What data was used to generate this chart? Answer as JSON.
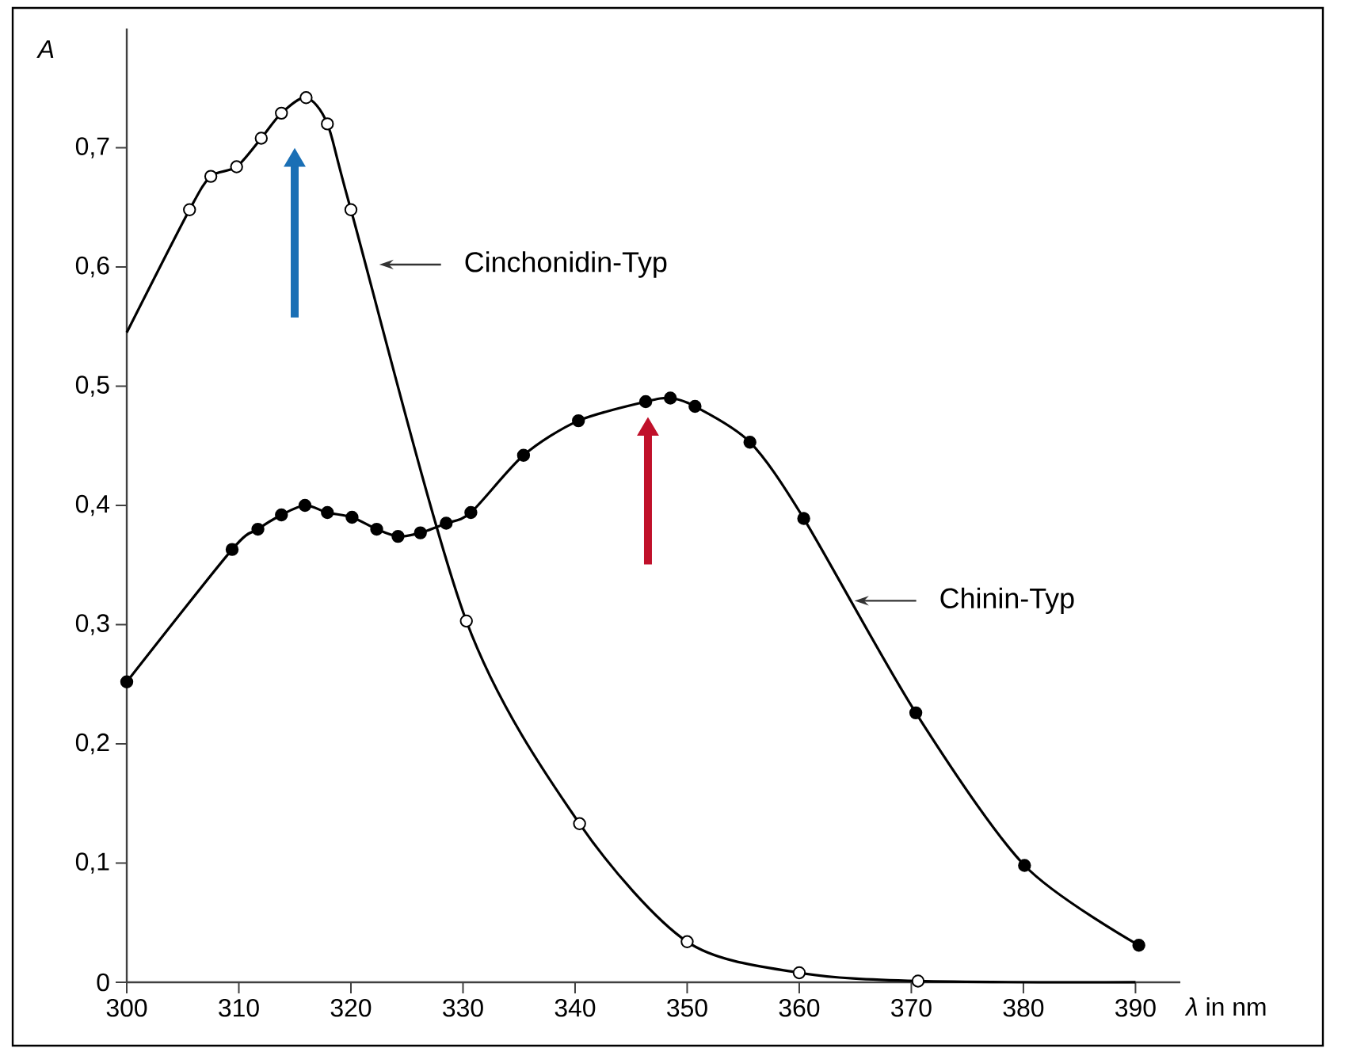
{
  "chart_data": {
    "type": "line",
    "xlabel": "*λ* in nm",
    "ylabel": "*A*",
    "xlim": [
      300,
      394
    ],
    "ylim": [
      0,
      0.8
    ],
    "xticks": [
      300,
      310,
      320,
      330,
      340,
      350,
      360,
      370,
      380,
      390
    ],
    "yticks": [
      0,
      {
        "value": 0.1,
        "label": "0,1"
      },
      {
        "value": 0.2,
        "label": "0,2"
      },
      {
        "value": 0.3,
        "label": "0,3"
      },
      {
        "value": 0.4,
        "label": "0,4"
      },
      {
        "value": 0.5,
        "label": "0,5"
      },
      {
        "value": 0.6,
        "label": "0,6"
      },
      {
        "value": 0.7,
        "label": "0,7"
      }
    ],
    "grid": false,
    "series": [
      {
        "marker": "none",
        "color": "#000000",
        "x": [
          300,
          305.6,
          307.5,
          309.8,
          312,
          313.8,
          316,
          317.9,
          320,
          330.3,
          340.4,
          350,
          360,
          370.6,
          390
        ],
        "values": [
          0.545,
          0.648,
          0.676,
          0.684,
          0.708,
          0.729,
          0.742,
          0.72,
          0.648,
          0.303,
          0.133,
          0.034,
          0.008,
          0.001,
          0
        ]
      },
      {
        "type": "scatter",
        "marker": "circle",
        "color": "#ffffff",
        "x": [
          305.6,
          307.5,
          309.8,
          312,
          313.8,
          316,
          317.9,
          320,
          330.3,
          340.4,
          350,
          360,
          370.6
        ],
        "values": [
          0.648,
          0.676,
          0.684,
          0.708,
          0.729,
          0.742,
          0.72,
          0.648,
          0.303,
          0.133,
          0.034,
          0.008,
          0.001
        ]
      },
      {
        "marker": "circle",
        "color": "#000000",
        "x": [
          300,
          309.4,
          311.7,
          313.8,
          315.9,
          317.9,
          320.1,
          322.3,
          324.2,
          326.2,
          328.5,
          330.7,
          335.4,
          340.3,
          346.3,
          348.5,
          350.7,
          355.6,
          360.4,
          370.4,
          380.1,
          390.3
        ],
        "values": [
          0.252,
          0.363,
          0.38,
          0.392,
          0.4,
          0.394,
          0.39,
          0.38,
          0.374,
          0.377,
          0.385,
          0.394,
          0.442,
          0.471,
          0.487,
          0.49,
          0.483,
          0.453,
          0.389,
          0.226,
          0.098,
          0.031
        ]
      }
    ],
    "annotations": [
      {
        "text": "Cinchonidin-Typ",
        "x": 322.1,
        "y": 0.602
      },
      {
        "text": "Chinin-Typ",
        "x": 364.5,
        "y": 0.32
      }
    ]
  }
}
